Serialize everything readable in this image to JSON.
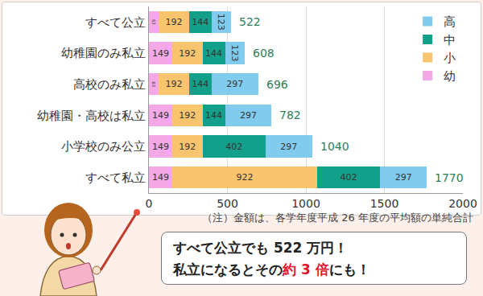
{
  "chart_data": {
    "type": "bar",
    "orientation": "horizontal",
    "stacked": true,
    "data_labels": true,
    "categories": [
      "すべて公立",
      "幼稚園のみ私立",
      "高校のみ私立",
      "幼稚園・高校は私立",
      "小学校のみ公立",
      "すべて私立"
    ],
    "series": [
      {
        "name": "幼",
        "color": "#f4a8e6",
        "values": [
          63,
          149,
          63,
          149,
          149,
          149
        ]
      },
      {
        "name": "小",
        "color": "#f8c56e",
        "values": [
          192,
          192,
          192,
          192,
          192,
          922
        ]
      },
      {
        "name": "中",
        "color": "#13a08a",
        "values": [
          144,
          144,
          144,
          144,
          402,
          402
        ]
      },
      {
        "name": "高",
        "color": "#80cbee",
        "values": [
          123,
          123,
          297,
          297,
          297,
          297
        ]
      }
    ],
    "totals": [
      522,
      608,
      696,
      782,
      1040,
      1770
    ],
    "xlim": [
      0,
      2000
    ],
    "xticks": [
      0,
      500,
      1000,
      1500,
      2000
    ],
    "grid": true,
    "legend": "top right",
    "note": "（注）金額は、各学年度平成 26 年度の平均額の単純合計",
    "callout": [
      [
        "すべて公立でも 522 万円！"
      ],
      [
        "私立になるとその",
        "約 3 倍",
        "にも！"
      ]
    ]
  }
}
